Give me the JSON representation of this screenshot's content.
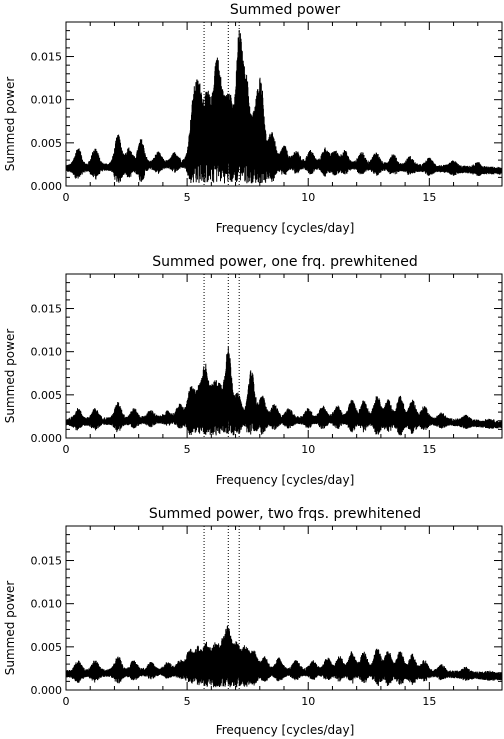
{
  "chart_data": [
    {
      "type": "line",
      "title": "Summed power",
      "xlabel": "Frequency [cycles/day]",
      "ylabel": "Summed power",
      "xlim": [
        0,
        18
      ],
      "ylim": [
        0,
        0.019
      ],
      "xticks": [
        0,
        5,
        10,
        15
      ],
      "xtick_labels": [
        "0",
        "5",
        "10",
        "15"
      ],
      "yticks": [
        0,
        0.005,
        0.01,
        0.015
      ],
      "ytick_labels": [
        "0.000",
        "0.005",
        "0.010",
        "0.015"
      ],
      "vlines": [
        5.7,
        6.7,
        7.15
      ],
      "grid": false,
      "series": [
        {
          "baseline": [
            [
              0,
              0.0025
            ],
            [
              3,
              0.0028
            ],
            [
              6,
              0.0032
            ],
            [
              9,
              0.003
            ],
            [
              12,
              0.0028
            ],
            [
              15,
              0.0025
            ],
            [
              18,
              0.0022
            ]
          ],
          "peaks": [
            [
              0.5,
              0.0045
            ],
            [
              1.2,
              0.0045
            ],
            [
              2.15,
              0.006
            ],
            [
              2.6,
              0.0045
            ],
            [
              3.1,
              0.0055
            ],
            [
              3.8,
              0.004
            ],
            [
              4.5,
              0.004
            ],
            [
              5.2,
              0.0065
            ],
            [
              5.35,
              0.0085
            ],
            [
              5.55,
              0.0095
            ],
            [
              5.85,
              0.0105
            ],
            [
              6.2,
              0.014
            ],
            [
              6.45,
              0.0095
            ],
            [
              6.75,
              0.011
            ],
            [
              7.15,
              0.0175
            ],
            [
              7.45,
              0.012
            ],
            [
              7.8,
              0.008
            ],
            [
              8.05,
              0.0118
            ],
            [
              8.5,
              0.0065
            ],
            [
              9.0,
              0.0048
            ],
            [
              9.5,
              0.0042
            ],
            [
              10.1,
              0.0042
            ],
            [
              10.7,
              0.0045
            ],
            [
              11.1,
              0.0042
            ],
            [
              11.5,
              0.0042
            ],
            [
              12.2,
              0.004
            ],
            [
              12.8,
              0.004
            ],
            [
              13.5,
              0.0038
            ],
            [
              14.2,
              0.0035
            ],
            [
              15.0,
              0.0033
            ],
            [
              16.0,
              0.003
            ],
            [
              17.0,
              0.0028
            ]
          ]
        }
      ]
    },
    {
      "type": "line",
      "title": "Summed power, one frq. prewhitened",
      "xlabel": "Frequency [cycles/day]",
      "ylabel": "Summed power",
      "xlim": [
        0,
        18
      ],
      "ylim": [
        0,
        0.019
      ],
      "xticks": [
        0,
        5,
        10,
        15
      ],
      "xtick_labels": [
        "0",
        "5",
        "10",
        "15"
      ],
      "yticks": [
        0,
        0.005,
        0.01,
        0.015
      ],
      "ytick_labels": [
        "0.000",
        "0.005",
        "0.010",
        "0.015"
      ],
      "vlines": [
        5.7,
        6.7,
        7.15
      ],
      "grid": false,
      "series": [
        {
          "baseline": [
            [
              0,
              0.0023
            ],
            [
              3,
              0.0025
            ],
            [
              6,
              0.0028
            ],
            [
              9,
              0.0025
            ],
            [
              12,
              0.0026
            ],
            [
              15,
              0.0024
            ],
            [
              18,
              0.002
            ]
          ],
          "peaks": [
            [
              0.5,
              0.0035
            ],
            [
              1.2,
              0.0035
            ],
            [
              2.15,
              0.0042
            ],
            [
              2.8,
              0.0035
            ],
            [
              3.5,
              0.0033
            ],
            [
              4.2,
              0.0032
            ],
            [
              4.7,
              0.004
            ],
            [
              5.15,
              0.0058
            ],
            [
              5.45,
              0.0055
            ],
            [
              5.75,
              0.0085
            ],
            [
              6.1,
              0.006
            ],
            [
              6.35,
              0.0058
            ],
            [
              6.7,
              0.0105
            ],
            [
              7.1,
              0.0052
            ],
            [
              7.65,
              0.008
            ],
            [
              8.1,
              0.005
            ],
            [
              8.6,
              0.004
            ],
            [
              9.2,
              0.0035
            ],
            [
              10.0,
              0.0035
            ],
            [
              10.6,
              0.0038
            ],
            [
              11.2,
              0.0038
            ],
            [
              11.8,
              0.0045
            ],
            [
              12.3,
              0.0045
            ],
            [
              12.85,
              0.005
            ],
            [
              13.3,
              0.0045
            ],
            [
              13.8,
              0.005
            ],
            [
              14.3,
              0.0045
            ],
            [
              14.8,
              0.0038
            ],
            [
              15.5,
              0.003
            ],
            [
              16.5,
              0.0027
            ],
            [
              17.5,
              0.0023
            ]
          ]
        }
      ]
    },
    {
      "type": "line",
      "title": "Summed power, two frqs. prewhitened",
      "xlabel": "Frequency [cycles/day]",
      "ylabel": "Summed power",
      "xlim": [
        0,
        18
      ],
      "ylim": [
        0,
        0.019
      ],
      "xticks": [
        0,
        5,
        10,
        15
      ],
      "xtick_labels": [
        "0",
        "5",
        "10",
        "15"
      ],
      "yticks": [
        0,
        0.005,
        0.01,
        0.015
      ],
      "ytick_labels": [
        "0.000",
        "0.005",
        "0.010",
        "0.015"
      ],
      "vlines": [
        5.7,
        6.7,
        7.15
      ],
      "grid": false,
      "series": [
        {
          "baseline": [
            [
              0,
              0.0023
            ],
            [
              3,
              0.0025
            ],
            [
              6,
              0.0027
            ],
            [
              9,
              0.0025
            ],
            [
              12,
              0.0026
            ],
            [
              15,
              0.0024
            ],
            [
              18,
              0.002
            ]
          ],
          "peaks": [
            [
              0.5,
              0.0035
            ],
            [
              1.2,
              0.0035
            ],
            [
              2.15,
              0.004
            ],
            [
              2.8,
              0.0035
            ],
            [
              3.5,
              0.0033
            ],
            [
              4.2,
              0.0033
            ],
            [
              4.7,
              0.0035
            ],
            [
              5.1,
              0.0048
            ],
            [
              5.45,
              0.005
            ],
            [
              5.8,
              0.0055
            ],
            [
              6.15,
              0.0055
            ],
            [
              6.45,
              0.0052
            ],
            [
              6.7,
              0.007
            ],
            [
              7.05,
              0.0055
            ],
            [
              7.4,
              0.0052
            ],
            [
              7.75,
              0.0048
            ],
            [
              8.2,
              0.004
            ],
            [
              8.8,
              0.0038
            ],
            [
              9.5,
              0.0035
            ],
            [
              10.2,
              0.0035
            ],
            [
              10.8,
              0.0038
            ],
            [
              11.3,
              0.004
            ],
            [
              11.8,
              0.0045
            ],
            [
              12.3,
              0.0045
            ],
            [
              12.85,
              0.005
            ],
            [
              13.3,
              0.0047
            ],
            [
              13.8,
              0.0046
            ],
            [
              14.3,
              0.0042
            ],
            [
              14.8,
              0.0035
            ],
            [
              15.5,
              0.003
            ],
            [
              16.5,
              0.0027
            ],
            [
              17.5,
              0.0023
            ]
          ]
        }
      ]
    }
  ]
}
